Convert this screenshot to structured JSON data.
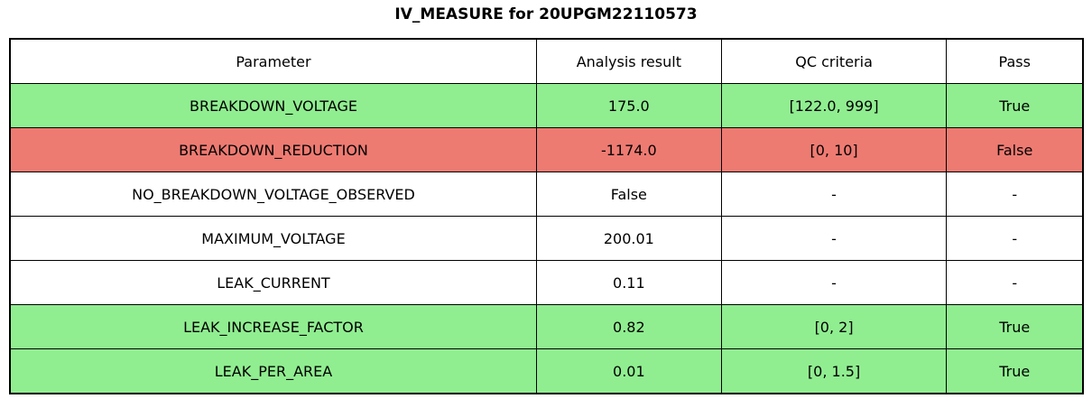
{
  "chart_data": {
    "type": "table",
    "title": "IV_MEASURE for 20UPGM22110573",
    "columns": [
      "Parameter",
      "Analysis result",
      "QC criteria",
      "Pass"
    ],
    "rows": [
      [
        "BREAKDOWN_VOLTAGE",
        "175.0",
        "[122.0, 999]",
        "True"
      ],
      [
        "BREAKDOWN_REDUCTION",
        "-1174.0",
        "[0, 10]",
        "False"
      ],
      [
        "NO_BREAKDOWN_VOLTAGE_OBSERVED",
        "False",
        "-",
        "-"
      ],
      [
        "MAXIMUM_VOLTAGE",
        "200.01",
        "-",
        "-"
      ],
      [
        "LEAK_CURRENT",
        "0.11",
        "-",
        "-"
      ],
      [
        "LEAK_INCREASE_FACTOR",
        "0.82",
        "[0, 2]",
        "True"
      ],
      [
        "LEAK_PER_AREA",
        "0.01",
        "[0, 1.5]",
        "True"
      ]
    ],
    "row_status": [
      "pass",
      "fail",
      "none",
      "none",
      "none",
      "pass",
      "pass"
    ],
    "colors": {
      "pass": "#90ee90",
      "fail": "#ee7b72",
      "none": "#ffffff",
      "border": "#000000",
      "header_bg": "#ffffff",
      "text": "#000000"
    },
    "layout": {
      "legend": "none",
      "grid": "table-borders",
      "header_row": true
    }
  }
}
